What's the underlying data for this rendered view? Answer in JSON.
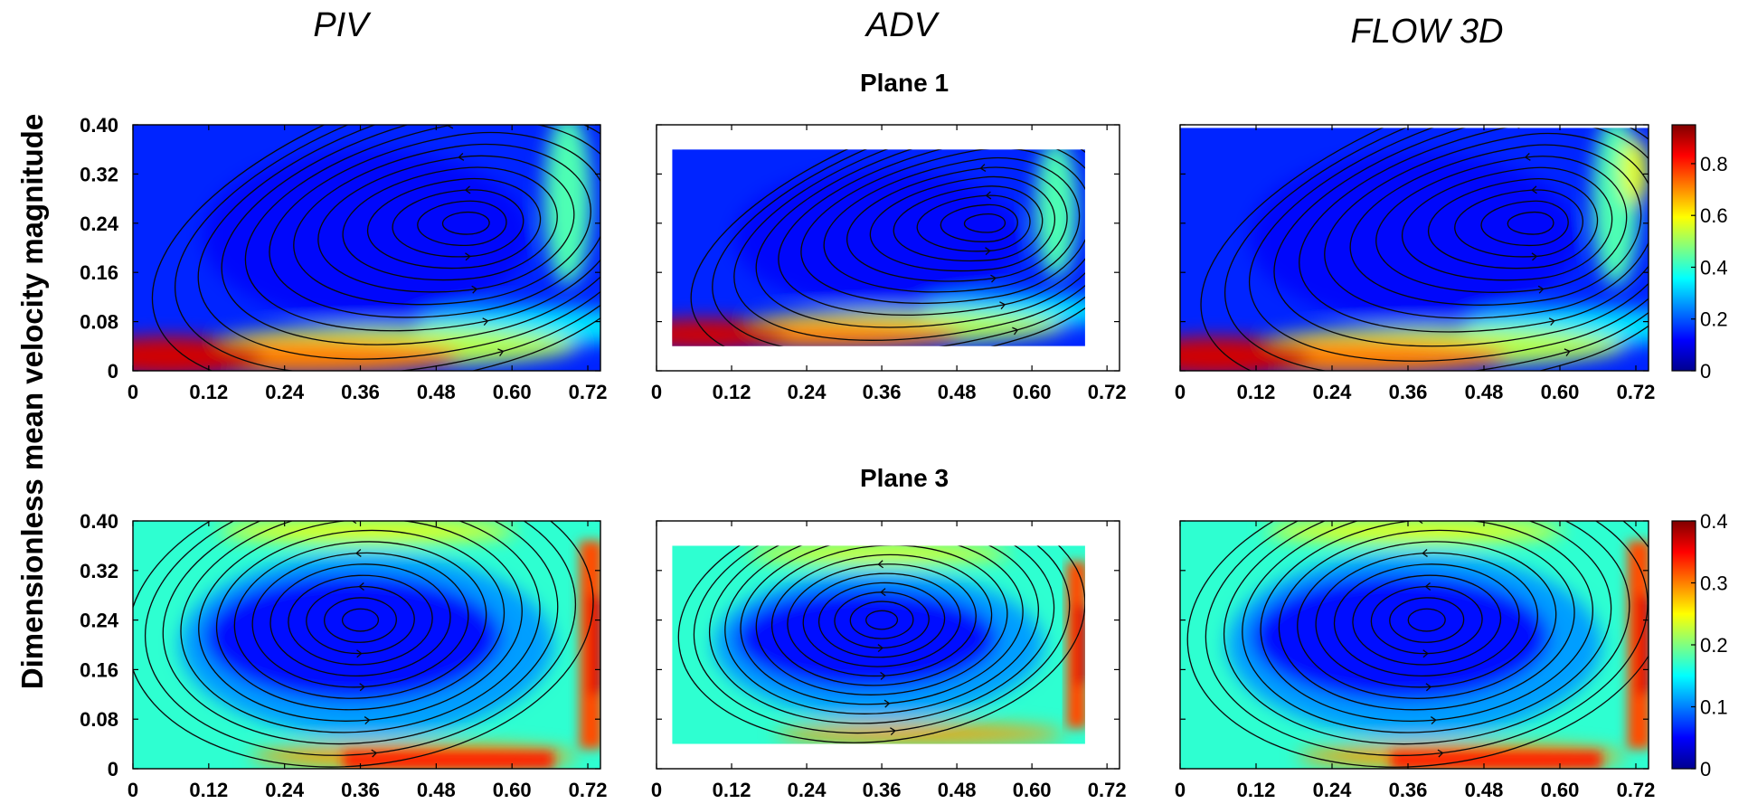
{
  "y_axis_label": "Dimensionless mean velocity magnitude",
  "columns": [
    "PIV",
    "ADV",
    "FLOW 3D"
  ],
  "rows": [
    {
      "title": "Plane 1",
      "colorbar": {
        "ticks": [
          "0",
          "0.2",
          "0.4",
          "0.6",
          "0.8"
        ],
        "min": 0,
        "max": 0.95
      },
      "hotspot": "bottom",
      "vortex": [
        0.53,
        0.24
      ]
    },
    {
      "title": "Plane 3",
      "colorbar": {
        "ticks": [
          "0",
          "0.1",
          "0.2",
          "0.3",
          "0.4"
        ],
        "min": 0,
        "max": 0.4
      },
      "hotspot": "ring",
      "vortex": [
        0.36,
        0.24
      ]
    }
  ],
  "chart_data": [
    {
      "type": "heatmap",
      "title": "Plane 1",
      "panels": [
        "PIV",
        "ADV",
        "FLOW 3D"
      ],
      "x_ticks": [
        "0",
        "0.12",
        "0.24",
        "0.36",
        "0.48",
        "0.60",
        "0.72"
      ],
      "y_ticks": [
        "0",
        "0.08",
        "0.16",
        "0.24",
        "0.32",
        "0.40"
      ],
      "xlim": [
        0,
        0.74
      ],
      "ylim": [
        0,
        0.4
      ],
      "colorbar_ticks": [
        "0",
        "0.2",
        "0.4",
        "0.6",
        "0.8"
      ],
      "colorbar_range": [
        0,
        0.95
      ],
      "colormap": "jet",
      "overlay": "streamlines"
    },
    {
      "type": "heatmap",
      "title": "Plane 3",
      "panels": [
        "PIV",
        "ADV",
        "FLOW 3D"
      ],
      "x_ticks": [
        "0",
        "0.12",
        "0.24",
        "0.36",
        "0.48",
        "0.60",
        "0.72"
      ],
      "y_ticks": [
        "0",
        "0.08",
        "0.16",
        "0.24",
        "0.32",
        "0.40"
      ],
      "xlim": [
        0,
        0.74
      ],
      "ylim": [
        0,
        0.4
      ],
      "colorbar_ticks": [
        "0",
        "0.1",
        "0.2",
        "0.3",
        "0.4"
      ],
      "colorbar_range": [
        0,
        0.4
      ],
      "colormap": "jet",
      "overlay": "streamlines"
    }
  ]
}
